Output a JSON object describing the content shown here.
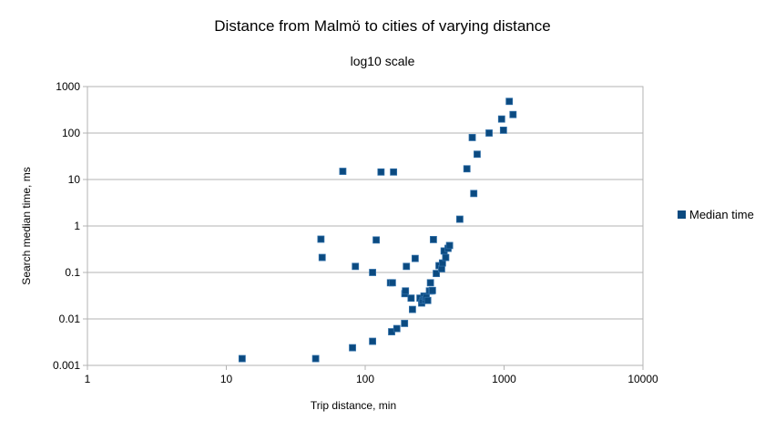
{
  "chart_data": {
    "type": "scatter",
    "title": "Distance from Malmö to cities of varying distance",
    "subtitle": "log10 scale",
    "xlabel": "Trip distance, min",
    "ylabel": "Search median time, ms",
    "xscale": "log10",
    "yscale": "log10",
    "xlim": [
      1,
      10000
    ],
    "ylim": [
      0.001,
      1000
    ],
    "x_ticks": [
      "1",
      "10",
      "100",
      "1000",
      "10000"
    ],
    "y_ticks": [
      "0.001",
      "0.01",
      "0.1",
      "1",
      "10",
      "100",
      "1000"
    ],
    "grid": "horizontal major",
    "legend": {
      "position": "right",
      "entries": [
        "Median time"
      ]
    },
    "series": [
      {
        "name": "Median time",
        "color": "#0b4a80",
        "points": [
          [
            13,
            0.0014
          ],
          [
            44,
            0.0014
          ],
          [
            81,
            0.0024
          ],
          [
            113,
            0.0033
          ],
          [
            155,
            0.0053
          ],
          [
            169,
            0.0062
          ],
          [
            192,
            0.008
          ],
          [
            219,
            0.016
          ],
          [
            48,
            0.52
          ],
          [
            49,
            0.21
          ],
          [
            85,
            0.135
          ],
          [
            113,
            0.1
          ],
          [
            120,
            0.5
          ],
          [
            152,
            0.06
          ],
          [
            157,
            0.06
          ],
          [
            193,
            0.035
          ],
          [
            195,
            0.04
          ],
          [
            198,
            0.135
          ],
          [
            214,
            0.028
          ],
          [
            229,
            0.2
          ],
          [
            69,
            15
          ],
          [
            130,
            14.5
          ],
          [
            160,
            14.5
          ],
          [
            248,
            0.028
          ],
          [
            255,
            0.022
          ],
          [
            260,
            0.025
          ],
          [
            265,
            0.031
          ],
          [
            270,
            0.026
          ],
          [
            275,
            0.029
          ],
          [
            282,
            0.025
          ],
          [
            290,
            0.04
          ],
          [
            295,
            0.06
          ],
          [
            300,
            0.04
          ],
          [
            305,
            0.041
          ],
          [
            310,
            0.51
          ],
          [
            325,
            0.095
          ],
          [
            340,
            0.14
          ],
          [
            355,
            0.12
          ],
          [
            360,
            0.16
          ],
          [
            370,
            0.29
          ],
          [
            380,
            0.21
          ],
          [
            395,
            0.33
          ],
          [
            405,
            0.38
          ],
          [
            480,
            1.4
          ],
          [
            540,
            17
          ],
          [
            590,
            80
          ],
          [
            605,
            5
          ],
          [
            640,
            35
          ],
          [
            780,
            100
          ],
          [
            960,
            200
          ],
          [
            990,
            115
          ],
          [
            1090,
            480
          ],
          [
            1160,
            250
          ]
        ]
      }
    ]
  }
}
